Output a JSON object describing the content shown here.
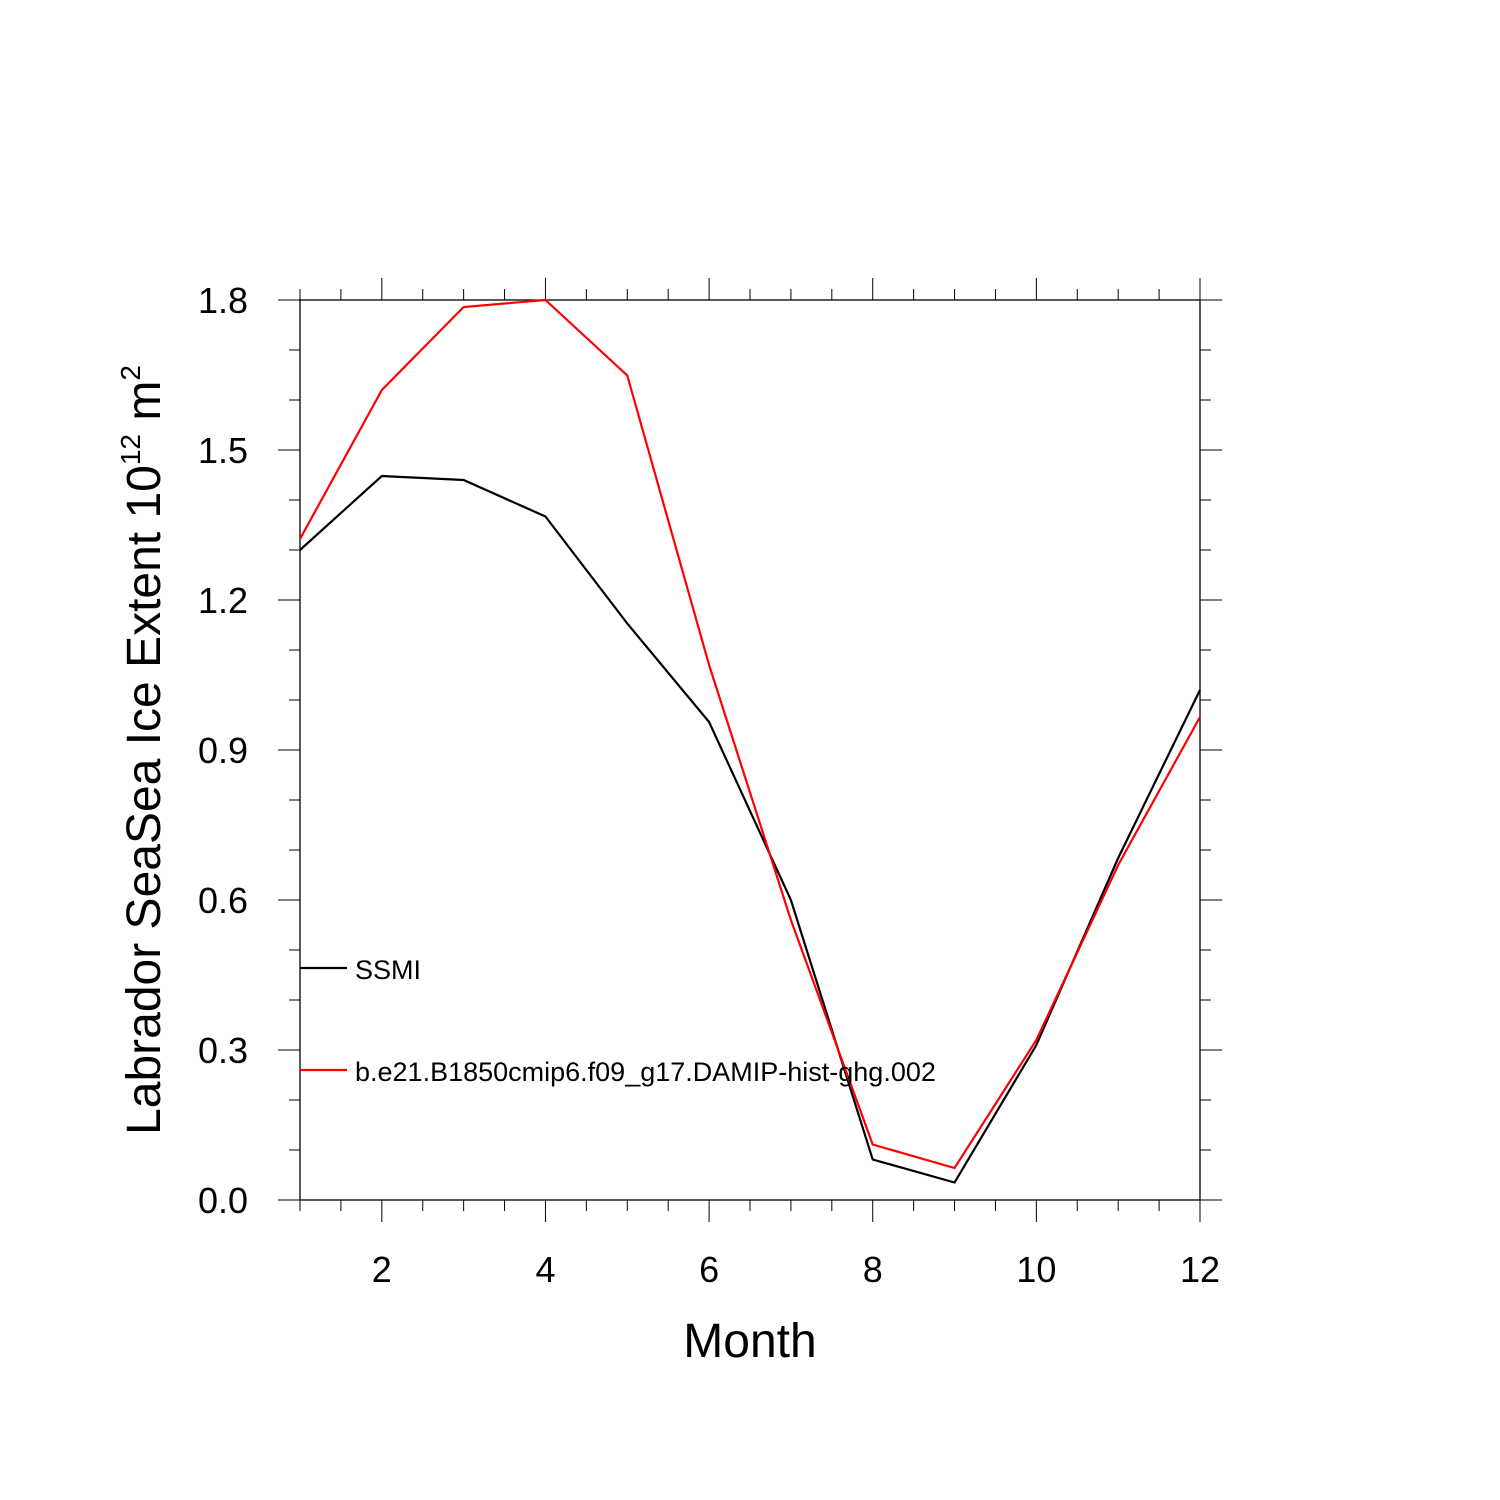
{
  "chart_data": {
    "type": "line",
    "title": "",
    "xlabel": "Month",
    "ylabel_main": "Labrador SeaSea Ice Extent 10",
    "ylabel_exp": "12",
    "ylabel_unit": " m",
    "ylabel_unit_exp": "2",
    "xlim": [
      1,
      12
    ],
    "ylim": [
      0,
      1.8
    ],
    "x_ticks": [
      2,
      4,
      6,
      8,
      10,
      12
    ],
    "x_tick_labels": [
      "2",
      "4",
      "6",
      "8",
      "10",
      "12"
    ],
    "y_ticks": [
      0,
      0.3,
      0.6,
      0.9,
      1.2,
      1.5,
      1.8
    ],
    "y_tick_labels": [
      "0.0",
      "0.3",
      "0.6",
      "0.9",
      "1.2",
      "1.5",
      "1.8"
    ],
    "grid": false,
    "legend_position": "lower-left inside",
    "x": [
      1,
      2,
      3,
      4,
      5,
      6,
      7,
      8,
      9,
      10,
      11,
      12
    ],
    "series": [
      {
        "name": "SSMI",
        "color": "#000000",
        "values": [
          1.3,
          1.448,
          1.44,
          1.367,
          1.153,
          0.956,
          0.6,
          0.081,
          0.035,
          0.31,
          0.684,
          1.02
        ]
      },
      {
        "name": "b.e21.B1850cmip6.f09_g17.DAMIP-hist-ghg.002",
        "color": "#ff0000",
        "values": [
          1.322,
          1.62,
          1.786,
          1.8,
          1.649,
          1.07,
          0.56,
          0.111,
          0.064,
          0.32,
          0.67,
          0.966
        ]
      }
    ]
  }
}
